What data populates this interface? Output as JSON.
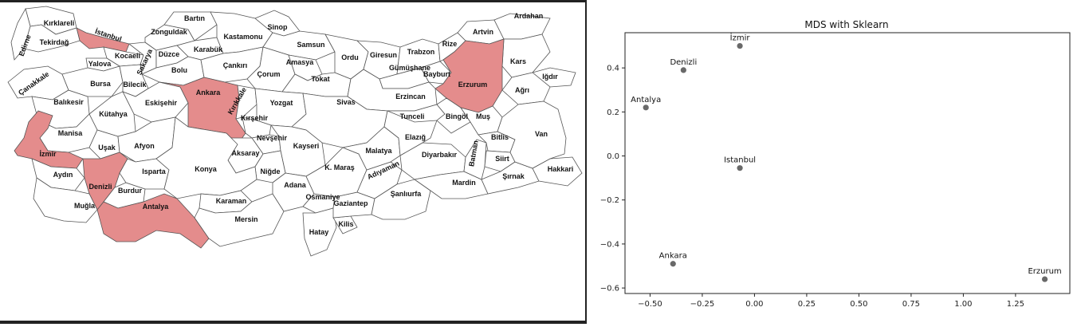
{
  "map": {
    "provinces": [
      {
        "name": "Kırklareli",
        "hl": false
      },
      {
        "name": "İstanbul",
        "hl": true
      },
      {
        "name": "Edirne",
        "hl": false
      },
      {
        "name": "Tekirdağ",
        "hl": false
      },
      {
        "name": "Kocaeli",
        "hl": false
      },
      {
        "name": "Yalova",
        "hl": false
      },
      {
        "name": "Sakarya",
        "hl": false
      },
      {
        "name": "Zonguldak",
        "hl": false
      },
      {
        "name": "Bartın",
        "hl": false
      },
      {
        "name": "Karabük",
        "hl": false
      },
      {
        "name": "Düzce",
        "hl": false
      },
      {
        "name": "Bolu",
        "hl": false
      },
      {
        "name": "Kastamonu",
        "hl": false
      },
      {
        "name": "Sinop",
        "hl": false
      },
      {
        "name": "Samsun",
        "hl": false
      },
      {
        "name": "Çankırı",
        "hl": false
      },
      {
        "name": "Çorum",
        "hl": false
      },
      {
        "name": "Amasya",
        "hl": false
      },
      {
        "name": "Tokat",
        "hl": false
      },
      {
        "name": "Ordu",
        "hl": false
      },
      {
        "name": "Giresun",
        "hl": false
      },
      {
        "name": "Trabzon",
        "hl": false
      },
      {
        "name": "Rize",
        "hl": false
      },
      {
        "name": "Artvin",
        "hl": false
      },
      {
        "name": "Ardahan",
        "hl": false
      },
      {
        "name": "Kars",
        "hl": false
      },
      {
        "name": "Iğdır",
        "hl": false
      },
      {
        "name": "Ağrı",
        "hl": false
      },
      {
        "name": "Gümüşhane",
        "hl": false
      },
      {
        "name": "Bayburt",
        "hl": false
      },
      {
        "name": "Erzurum",
        "hl": true
      },
      {
        "name": "Erzincan",
        "hl": false
      },
      {
        "name": "Çanakkale",
        "hl": false
      },
      {
        "name": "Balıkesir",
        "hl": false
      },
      {
        "name": "Bursa",
        "hl": false
      },
      {
        "name": "Bilecik",
        "hl": false
      },
      {
        "name": "Eskişehir",
        "hl": false
      },
      {
        "name": "Ankara",
        "hl": true
      },
      {
        "name": "Kırıkkale",
        "hl": false
      },
      {
        "name": "Yozgat",
        "hl": false
      },
      {
        "name": "Sivas",
        "hl": false
      },
      {
        "name": "Kırşehir",
        "hl": false
      },
      {
        "name": "Nevşehir",
        "hl": false
      },
      {
        "name": "Kayseri",
        "hl": false
      },
      {
        "name": "Aksaray",
        "hl": false
      },
      {
        "name": "Niğde",
        "hl": false
      },
      {
        "name": "Kütahya",
        "hl": false
      },
      {
        "name": "Manisa",
        "hl": false
      },
      {
        "name": "İzmir",
        "hl": true
      },
      {
        "name": "Uşak",
        "hl": false
      },
      {
        "name": "Afyon",
        "hl": false
      },
      {
        "name": "Aydın",
        "hl": false
      },
      {
        "name": "Denizli",
        "hl": true
      },
      {
        "name": "Muğla",
        "hl": false
      },
      {
        "name": "Burdur",
        "hl": false
      },
      {
        "name": "Isparta",
        "hl": false
      },
      {
        "name": "Antalya",
        "hl": true
      },
      {
        "name": "Konya",
        "hl": false
      },
      {
        "name": "Karaman",
        "hl": false
      },
      {
        "name": "Mersin",
        "hl": false
      },
      {
        "name": "Adana",
        "hl": false
      },
      {
        "name": "Osmaniye",
        "hl": false
      },
      {
        "name": "Hatay",
        "hl": false
      },
      {
        "name": "Kilis",
        "hl": false
      },
      {
        "name": "Gaziantep",
        "hl": false
      },
      {
        "name": "K. Maraş",
        "hl": false
      },
      {
        "name": "Adıyaman",
        "hl": false
      },
      {
        "name": "Malatya",
        "hl": false
      },
      {
        "name": "Şanlıurfa",
        "hl": false
      },
      {
        "name": "Diyarbakır",
        "hl": false
      },
      {
        "name": "Mardin",
        "hl": false
      },
      {
        "name": "Batman",
        "hl": false
      },
      {
        "name": "Elazığ",
        "hl": false
      },
      {
        "name": "Tunceli",
        "hl": false
      },
      {
        "name": "Bingöl",
        "hl": false
      },
      {
        "name": "Muş",
        "hl": false
      },
      {
        "name": "Bitlis",
        "hl": false
      },
      {
        "name": "Siirt",
        "hl": false
      },
      {
        "name": "Şırnak",
        "hl": false
      },
      {
        "name": "Hakkari",
        "hl": false
      },
      {
        "name": "Van",
        "hl": false
      }
    ],
    "highlight_color": "#e48c8c"
  },
  "chart_data": {
    "type": "scatter",
    "title": "MDS with Sklearn",
    "xlim": [
      -0.62,
      1.51
    ],
    "ylim": [
      -0.625,
      0.56
    ],
    "xticks": [
      "−0.50",
      "−0.25",
      "0.00",
      "0.25",
      "0.50",
      "0.75",
      "1.00",
      "1.25"
    ],
    "xtick_values": [
      -0.5,
      -0.25,
      0,
      0.25,
      0.5,
      0.75,
      1.0,
      1.25
    ],
    "yticks": [
      "−0.6",
      "−0.4",
      "−0.2",
      "0.0",
      "0.2",
      "0.4"
    ],
    "ytick_values": [
      -0.6,
      -0.4,
      -0.2,
      0,
      0.2,
      0.4
    ],
    "points": [
      {
        "label": "İzmir",
        "x": -0.07,
        "y": 0.5
      },
      {
        "label": "Denizli",
        "x": -0.34,
        "y": 0.39
      },
      {
        "label": "Antalya",
        "x": -0.52,
        "y": 0.22
      },
      {
        "label": "Istanbul",
        "x": -0.07,
        "y": -0.055
      },
      {
        "label": "Ankara",
        "x": -0.39,
        "y": -0.49
      },
      {
        "label": "Erzurum",
        "x": 1.39,
        "y": -0.56
      }
    ],
    "point_color": "#696969",
    "grid": false
  }
}
